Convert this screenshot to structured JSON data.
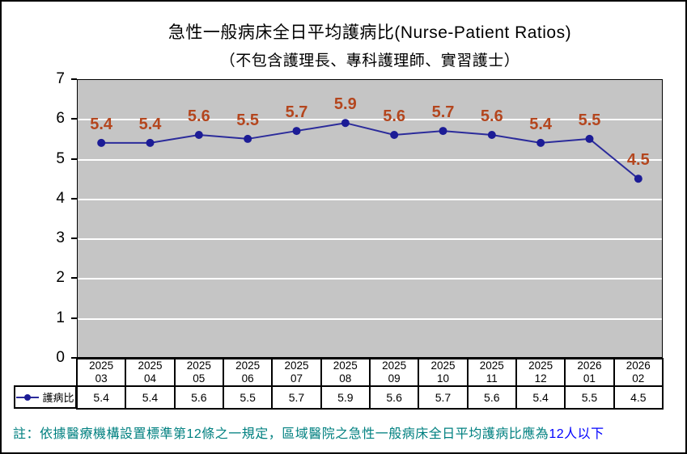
{
  "title": "急性一般病床全日平均護病比(Nurse-Patient Ratios)",
  "subtitle": "（不包含護理長、專科護理師、實習護士）",
  "legend": {
    "label": "護病比"
  },
  "note": {
    "prefix": "註：依據醫療機構設置標準第12條之一規定，區域醫院之急性一般病床全日平均護病比應為",
    "highlight": "12人以下"
  },
  "colors": {
    "line": "#2B2B9B",
    "marker": "#1C1C96",
    "data_label": "#B4461E",
    "plot_background": "#C5C5C5",
    "gridline": "#FFFFFF",
    "note_text": "#008080",
    "note_highlight": "#0000FF",
    "axis_text": "#000000"
  },
  "chart_data": {
    "type": "line",
    "title": "急性一般病床全日平均護病比(Nurse-Patient Ratios)",
    "subtitle": "（不包含護理長、專科護理師、實習護士）",
    "categories": [
      "2025 03",
      "2025 04",
      "2025 05",
      "2025 06",
      "2025 07",
      "2025 08",
      "2025 09",
      "2025 10",
      "2025 11",
      "2025 12",
      "2026 01",
      "2026 02"
    ],
    "series": [
      {
        "name": "護病比",
        "values": [
          5.4,
          5.4,
          5.6,
          5.5,
          5.7,
          5.9,
          5.6,
          5.7,
          5.6,
          5.4,
          5.5,
          4.5
        ]
      }
    ],
    "xlabel": "",
    "ylabel": "",
    "ylim": [
      0,
      7
    ],
    "ytick_step": 1,
    "grid": true,
    "data_labels": true,
    "legend_position": "table-left"
  }
}
